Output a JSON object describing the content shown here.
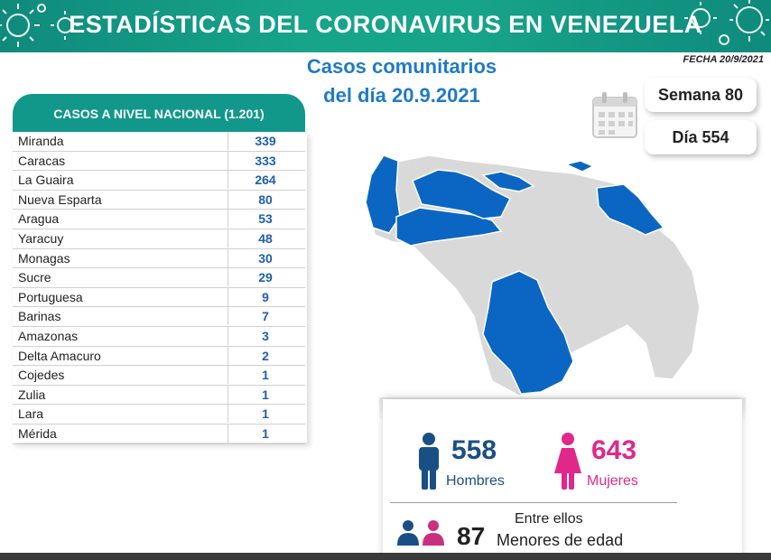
{
  "banner": {
    "title": "ESTADÍSTICAS DEL CORONAVIRUS EN VENEZUELA"
  },
  "subtitle": {
    "line1": "Casos comunitarios",
    "line2": "del día 20.9.2021"
  },
  "fecha": "FECHA 20/9/2021",
  "table": {
    "header": "CASOS A NIVEL NACIONAL (1.201)",
    "rows": [
      {
        "name": "Miranda",
        "value": "339"
      },
      {
        "name": "Caracas",
        "value": "333"
      },
      {
        "name": "La Guaira",
        "value": "264"
      },
      {
        "name": "Nueva Esparta",
        "value": "80"
      },
      {
        "name": "Aragua",
        "value": "53"
      },
      {
        "name": "Yaracuy",
        "value": "48"
      },
      {
        "name": "Monagas",
        "value": "30"
      },
      {
        "name": "Sucre",
        "value": "29"
      },
      {
        "name": "Portuguesa",
        "value": "9"
      },
      {
        "name": "Barinas",
        "value": "7"
      },
      {
        "name": "Amazonas",
        "value": "3"
      },
      {
        "name": "Delta Amacuro",
        "value": "2"
      },
      {
        "name": "Cojedes",
        "value": "1"
      },
      {
        "name": "Zulia",
        "value": "1"
      },
      {
        "name": "Lara",
        "value": "1"
      },
      {
        "name": "Mérida",
        "value": "1"
      }
    ]
  },
  "week": {
    "label": "Semana 80"
  },
  "day": {
    "label": "Día 554"
  },
  "stats": {
    "men_count": "558",
    "men_label": "Hombres",
    "women_count": "643",
    "women_label": "Mujeres",
    "among_label": "Entre ellos",
    "minors_count": "87",
    "minors_label": "Menores de edad"
  },
  "colors": {
    "banner": "#17a58a",
    "accent_blue": "#1f7ac8",
    "map_active": "#0b66c3",
    "map_inactive": "#d9d9d9",
    "women": "#e0288a",
    "men": "#1a4f86"
  }
}
